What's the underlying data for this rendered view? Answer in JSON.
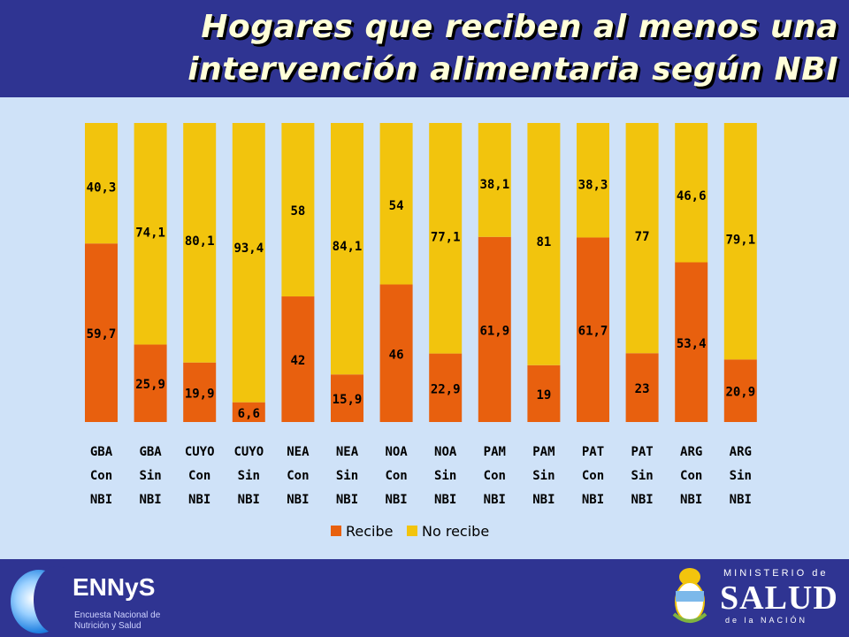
{
  "header": {
    "title_line1": "Hogares que reciben al menos una",
    "title_line2": "intervención alimentaria  según NBI"
  },
  "chart_data": {
    "type": "bar",
    "stacked": true,
    "title": "Hogares que reciben al menos una intervención alimentaria  según NBI",
    "categories": [
      [
        "GBA",
        "Con",
        "NBI"
      ],
      [
        "GBA",
        "Sin",
        "NBI"
      ],
      [
        "CUYO",
        "Con",
        "NBI"
      ],
      [
        "CUYO",
        "Sin",
        "NBI"
      ],
      [
        "NEA",
        "Con",
        "NBI"
      ],
      [
        "NEA",
        "Sin",
        "NBI"
      ],
      [
        "NOA",
        "Con",
        "NBI"
      ],
      [
        "NOA",
        "Sin",
        "NBI"
      ],
      [
        "PAM",
        "Con",
        "NBI"
      ],
      [
        "PAM",
        "Sin",
        "NBI"
      ],
      [
        "PAT",
        "Con",
        "NBI"
      ],
      [
        "PAT",
        "Sin",
        "NBI"
      ],
      [
        "ARG",
        "Con",
        "NBI"
      ],
      [
        "ARG",
        "Sin",
        "NBI"
      ]
    ],
    "series": [
      {
        "name": "Recibe",
        "color": "#e8600e",
        "values": [
          59.7,
          25.9,
          19.9,
          6.6,
          42,
          15.9,
          46,
          22.9,
          61.9,
          19,
          61.7,
          23,
          53.4,
          20.9
        ],
        "labels": [
          "59,7",
          "25,9",
          "19,9",
          "6,6",
          "42",
          "15,9",
          "46",
          "22,9",
          "61,9",
          "19",
          "61,7",
          "23",
          "53,4",
          "20,9"
        ]
      },
      {
        "name": "No recibe",
        "color": "#f2c40d",
        "values": [
          40.3,
          74.1,
          80.1,
          93.4,
          58,
          84.1,
          54,
          77.1,
          38.1,
          81,
          38.3,
          77,
          46.6,
          79.1
        ],
        "labels": [
          "40,3",
          "74,1",
          "80,1",
          "93,4",
          "58",
          "84,1",
          "54",
          "77,1",
          "38,1",
          "81",
          "38,3",
          "77",
          "46,6",
          "79,1"
        ]
      }
    ],
    "ylim": [
      0,
      100
    ],
    "xlabel": "",
    "ylabel": "",
    "grid": false,
    "legend": "bottom-center"
  },
  "footer": {
    "ennys_title": "ENNyS",
    "ennys_subtitle": "Encuesta Nacional de Nutrición y Salud",
    "ministry_top": "MINISTERIO de",
    "ministry_main": "SALUD",
    "ministry_bottom": "de la NACIÓN"
  }
}
